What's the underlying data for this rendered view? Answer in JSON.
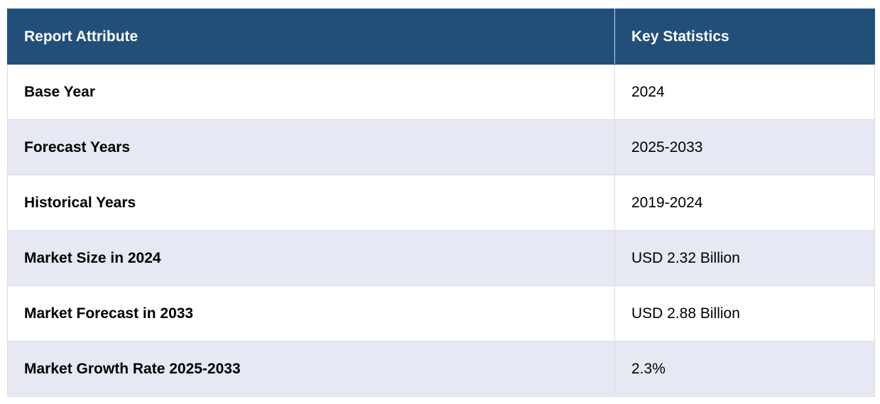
{
  "table": {
    "headers": [
      "Report Attribute",
      "Key Statistics"
    ],
    "rows": [
      {
        "attribute": "Base Year",
        "value": "2024"
      },
      {
        "attribute": "Forecast Years",
        "value": "2025-2033"
      },
      {
        "attribute": "Historical Years",
        "value": "2019-2024"
      },
      {
        "attribute": "Market Size in 2024",
        "value": "USD 2.32 Billion"
      },
      {
        "attribute": "Market Forecast in 2033",
        "value": "USD 2.88 Billion"
      },
      {
        "attribute": "Market Growth Rate 2025-2033",
        "value": "2.3%"
      }
    ]
  },
  "colors": {
    "header_bg": "#224f79",
    "header_text": "#ffffff",
    "row_alt_bg": "#e6e8f3",
    "row_bg": "#ffffff"
  }
}
